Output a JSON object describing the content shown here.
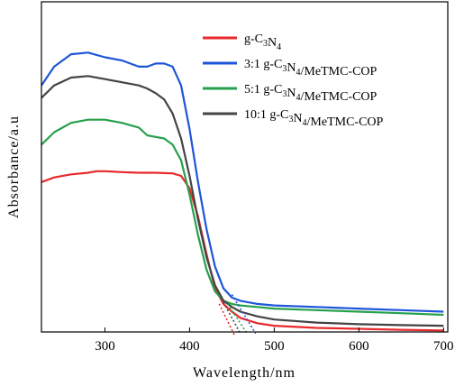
{
  "chart_data": {
    "type": "line",
    "title": "",
    "xlabel": "Wavelength/nm",
    "ylabel": "Absorbance/a.u",
    "xlim": [
      225,
      705
    ],
    "ylim": [
      0,
      1
    ],
    "xticks": [
      300,
      400,
      500,
      600,
      700
    ],
    "yticks_shown": false,
    "grid": false,
    "legend": {
      "position": "top-right",
      "entries": [
        {
          "prefix": "",
          "main": "g-C",
          "sub1": "3",
          "mid": "N",
          "sub2": "4",
          "suffix": ""
        },
        {
          "prefix": "3:1 ",
          "main": "g-C",
          "sub1": "3",
          "mid": "N",
          "sub2": "4",
          "suffix": "/MeTMC-COP"
        },
        {
          "prefix": "5:1 ",
          "main": "g-C",
          "sub1": "3",
          "mid": "N",
          "sub2": "4",
          "suffix": "/MeTMC-COP"
        },
        {
          "prefix": "10:1 ",
          "main": "g-C",
          "sub1": "3",
          "mid": "N",
          "sub2": "4",
          "suffix": "/MeTMC-COP"
        }
      ]
    },
    "series": [
      {
        "name": "g-C3N4",
        "color": "#e8282b",
        "x": [
          225,
          240,
          260,
          280,
          290,
          300,
          320,
          340,
          360,
          380,
          390,
          400,
          410,
          420,
          430,
          440,
          450,
          460,
          480,
          500,
          550,
          600,
          650,
          700
        ],
        "y": [
          0.48,
          0.495,
          0.505,
          0.51,
          0.515,
          0.515,
          0.512,
          0.51,
          0.51,
          0.508,
          0.5,
          0.46,
          0.37,
          0.25,
          0.14,
          0.09,
          0.065,
          0.045,
          0.028,
          0.02,
          0.013,
          0.01,
          0.007,
          0.005
        ]
      },
      {
        "name": "3:1 g-C3N4/MeTMC-COP",
        "color": "#1e55d8",
        "x": [
          225,
          240,
          260,
          280,
          300,
          320,
          340,
          350,
          360,
          370,
          380,
          390,
          400,
          410,
          420,
          430,
          440,
          450,
          460,
          480,
          500,
          550,
          600,
          650,
          700
        ],
        "y": [
          0.79,
          0.85,
          0.89,
          0.895,
          0.88,
          0.87,
          0.85,
          0.85,
          0.86,
          0.86,
          0.85,
          0.79,
          0.65,
          0.48,
          0.33,
          0.21,
          0.14,
          0.11,
          0.1,
          0.09,
          0.085,
          0.08,
          0.075,
          0.07,
          0.065
        ]
      },
      {
        "name": "5:1 g-C3N4/MeTMC-COP",
        "color": "#26a04d",
        "x": [
          225,
          240,
          260,
          280,
          300,
          320,
          340,
          350,
          360,
          370,
          380,
          390,
          400,
          410,
          420,
          430,
          440,
          450,
          460,
          480,
          500,
          550,
          600,
          650,
          700
        ],
        "y": [
          0.6,
          0.64,
          0.67,
          0.68,
          0.68,
          0.67,
          0.655,
          0.63,
          0.625,
          0.62,
          0.6,
          0.55,
          0.44,
          0.31,
          0.2,
          0.13,
          0.1,
          0.09,
          0.085,
          0.08,
          0.075,
          0.07,
          0.065,
          0.06,
          0.055
        ]
      },
      {
        "name": "10:1 g-C3N4/MeTMC-COP",
        "color": "#444444",
        "x": [
          225,
          240,
          260,
          280,
          300,
          320,
          340,
          350,
          360,
          370,
          380,
          390,
          400,
          410,
          420,
          430,
          440,
          450,
          460,
          480,
          500,
          550,
          600,
          650,
          700
        ],
        "y": [
          0.75,
          0.79,
          0.815,
          0.82,
          0.81,
          0.8,
          0.79,
          0.78,
          0.765,
          0.745,
          0.7,
          0.62,
          0.5,
          0.36,
          0.24,
          0.15,
          0.1,
          0.08,
          0.065,
          0.05,
          0.04,
          0.03,
          0.025,
          0.022,
          0.02
        ]
      }
    ],
    "tangent_lines": [
      {
        "color": "#e8282b",
        "x": [
          435,
          453
        ],
        "y": [
          0.09,
          -0.01
        ]
      },
      {
        "color": "#26a04d",
        "x": [
          445,
          468
        ],
        "y": [
          0.09,
          -0.005
        ]
      },
      {
        "color": "#444444",
        "x": [
          440,
          460
        ],
        "y": [
          0.095,
          -0.005
        ]
      },
      {
        "color": "#1e55d8",
        "x": [
          450,
          478
        ],
        "y": [
          0.12,
          -0.005
        ]
      }
    ]
  }
}
